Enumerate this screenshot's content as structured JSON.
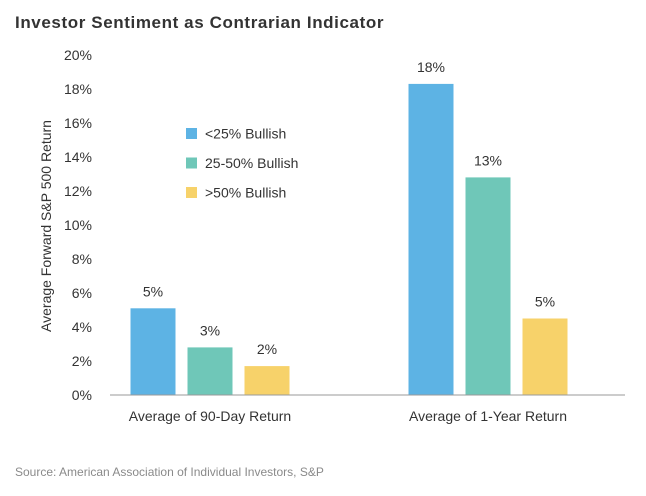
{
  "chart_data": {
    "type": "bar",
    "title": "Investor Sentiment as Contrarian Indicator",
    "ylabel": "Average Forward S&P 500 Return",
    "xlabel": "",
    "categories": [
      "Average of 90-Day Return",
      "Average of 1-Year Return"
    ],
    "series": [
      {
        "name": "<25% Bullish",
        "color": "#5db3e4",
        "values": [
          5.1,
          18.3
        ],
        "labels": [
          "5%",
          "18%"
        ]
      },
      {
        "name": "25-50% Bullish",
        "color": "#6fc7b8",
        "values": [
          2.8,
          12.8
        ],
        "labels": [
          "3%",
          "13%"
        ]
      },
      {
        "name": ">50% Bullish",
        "color": "#f7d26a",
        "values": [
          1.7,
          4.5
        ],
        "labels": [
          "2%",
          "5%"
        ]
      }
    ],
    "ylim": [
      0,
      20
    ],
    "yticks": [
      "0%",
      "2%",
      "4%",
      "6%",
      "8%",
      "10%",
      "12%",
      "14%",
      "16%",
      "18%",
      "20%"
    ],
    "grid": false,
    "legend_position": "upper-left",
    "source": "Source: American Association of Individual Investors, S&P"
  }
}
